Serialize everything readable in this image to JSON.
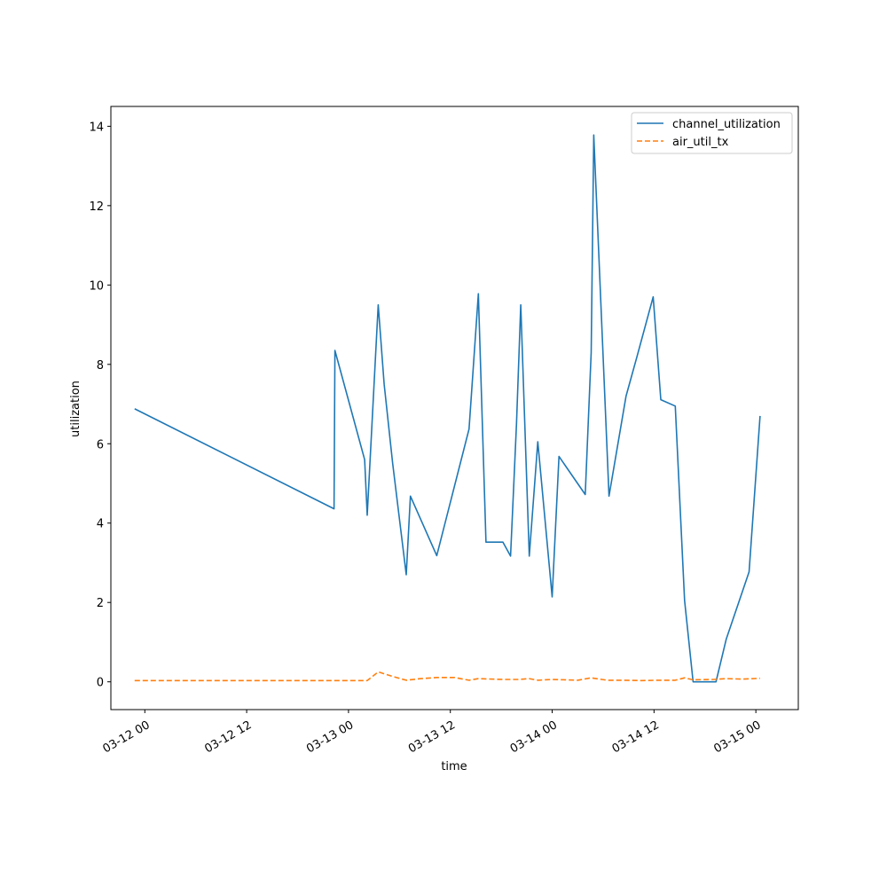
{
  "chart_data": {
    "type": "line",
    "title": "",
    "xlabel": "time",
    "ylabel": "utilization",
    "x_ticks": [
      "03-12 00",
      "03-12 12",
      "03-13 00",
      "03-13 12",
      "03-14 00",
      "03-14 12",
      "03-15 00"
    ],
    "x_tick_hours": [
      0,
      12,
      24,
      36,
      48,
      60,
      72
    ],
    "y_ticks": [
      "0",
      "2",
      "4",
      "6",
      "8",
      "10",
      "12",
      "14"
    ],
    "xlim": [
      "03-11 20:00",
      "03-15 05:00"
    ],
    "ylim": [
      -0.7,
      14.5
    ],
    "grid": false,
    "legend_position": "upper right",
    "series": [
      {
        "name": "channel_utilization",
        "color": "#1f77b4",
        "style": "solid",
        "x": [
          -1.2,
          22.3,
          22.4,
          25.9,
          26.2,
          27.5,
          28.2,
          29.2,
          30.8,
          31.3,
          34.4,
          38.2,
          39.3,
          40.2,
          42.2,
          43.1,
          43.8,
          44.3,
          45.3,
          46.3,
          48.0,
          48.8,
          51.9,
          52.6,
          52.9,
          54.7,
          56.7,
          58.0,
          59.9,
          60.8,
          62.5,
          63.6,
          64.6,
          67.3,
          68.5,
          71.2,
          72.5
        ],
        "y": [
          6.88,
          4.36,
          8.35,
          5.6,
          4.2,
          9.5,
          7.5,
          5.5,
          2.7,
          4.68,
          3.18,
          6.37,
          9.78,
          3.52,
          3.52,
          3.17,
          6.5,
          9.5,
          3.17,
          6.05,
          2.14,
          5.68,
          4.72,
          8.3,
          13.78,
          4.68,
          7.2,
          8.2,
          9.7,
          7.11,
          6.95,
          2.05,
          0.0,
          0.0,
          1.07,
          2.77,
          6.7
        ]
      },
      {
        "name": "air_util_tx",
        "color": "#ff7f0e",
        "style": "dashed",
        "x": [
          -1.2,
          26.2,
          27.5,
          29.0,
          30.8,
          32.5,
          34.4,
          36.5,
          38.2,
          39.3,
          42.2,
          44.0,
          45.3,
          46.3,
          48.0,
          49.5,
          51.0,
          52.6,
          54.5,
          56.5,
          58.5,
          60.5,
          62.5,
          63.6,
          64.6,
          67.0,
          68.5,
          70.5,
          72.5
        ],
        "y": [
          0.03,
          0.03,
          0.25,
          0.15,
          0.04,
          0.08,
          0.11,
          0.11,
          0.04,
          0.08,
          0.06,
          0.06,
          0.08,
          0.04,
          0.06,
          0.05,
          0.04,
          0.1,
          0.04,
          0.04,
          0.03,
          0.04,
          0.04,
          0.1,
          0.05,
          0.06,
          0.08,
          0.07,
          0.09
        ]
      }
    ]
  }
}
